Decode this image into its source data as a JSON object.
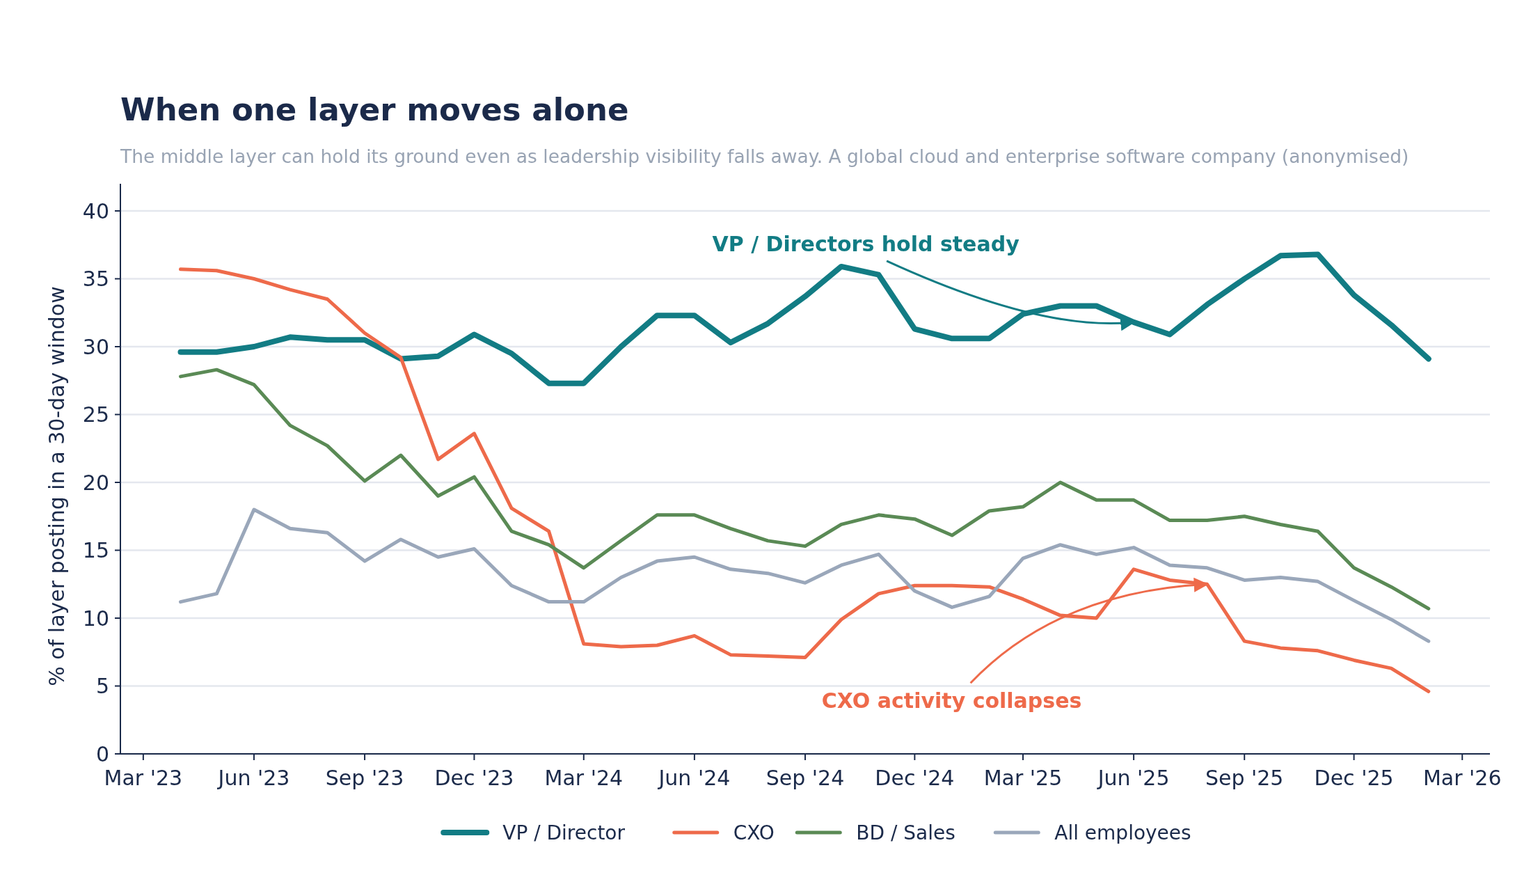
{
  "chart_data": {
    "type": "line",
    "title": "When one layer moves alone",
    "subtitle": "The middle layer can hold its ground even as leadership visibility falls away. A global cloud and enterprise software company (anonymised)",
    "ylabel": "% of layer posting in a 30-day window",
    "x": [
      "2023-04",
      "2023-05",
      "2023-06",
      "2023-07",
      "2023-08",
      "2023-09",
      "2023-10",
      "2023-11",
      "2023-12",
      "2024-01",
      "2024-02",
      "2024-03",
      "2024-04",
      "2024-05",
      "2024-06",
      "2024-07",
      "2024-08",
      "2024-09",
      "2024-10",
      "2024-11",
      "2024-12",
      "2025-01",
      "2025-02",
      "2025-03",
      "2025-04",
      "2025-05",
      "2025-06",
      "2025-07",
      "2025-08",
      "2025-09",
      "2025-10",
      "2025-11",
      "2025-12",
      "2026-01",
      "2026-02"
    ],
    "series": [
      {
        "name": "VP / Director",
        "color": "#127c84",
        "values": [
          29.6,
          29.6,
          30.0,
          30.7,
          30.5,
          30.5,
          29.1,
          29.3,
          30.9,
          29.5,
          27.3,
          27.3,
          30.0,
          32.3,
          32.3,
          30.3,
          31.7,
          33.7,
          35.9,
          35.3,
          31.3,
          30.6,
          30.6,
          32.4,
          33.0,
          33.0,
          31.8,
          30.9,
          33.1,
          35.0,
          36.7,
          36.8,
          33.8,
          31.6,
          29.1
        ]
      },
      {
        "name": "CXO",
        "color": "#ee6a4a",
        "values": [
          35.7,
          35.6,
          35.0,
          34.2,
          33.5,
          31.0,
          29.2,
          21.7,
          23.6,
          18.1,
          16.4,
          8.1,
          7.9,
          8.0,
          8.7,
          7.3,
          7.2,
          7.1,
          9.9,
          11.8,
          12.4,
          12.4,
          12.3,
          11.4,
          10.2,
          10.0,
          13.6,
          12.8,
          12.5,
          8.3,
          7.8,
          7.6,
          6.9,
          6.3,
          4.6
        ]
      },
      {
        "name": "BD / Sales",
        "color": "#5a8a55",
        "values": [
          27.8,
          28.3,
          27.2,
          24.2,
          22.7,
          20.1,
          22.0,
          19.0,
          20.4,
          16.4,
          15.4,
          13.7,
          15.7,
          17.6,
          17.6,
          16.6,
          15.7,
          15.3,
          16.9,
          17.6,
          17.3,
          16.1,
          17.9,
          18.2,
          20.0,
          18.7,
          18.7,
          17.2,
          17.2,
          17.5,
          16.9,
          16.4,
          13.7,
          12.3,
          10.7
        ]
      },
      {
        "name": "All employees",
        "color": "#9aa7ba",
        "values": [
          11.2,
          11.8,
          18.0,
          16.6,
          16.3,
          14.2,
          15.8,
          14.5,
          15.1,
          12.4,
          11.2,
          11.2,
          13.0,
          14.2,
          14.5,
          13.6,
          13.3,
          12.6,
          13.9,
          14.7,
          12.0,
          10.8,
          11.6,
          14.4,
          15.4,
          14.7,
          15.2,
          13.9,
          13.7,
          12.8,
          13.0,
          12.7,
          11.3,
          9.9,
          8.3
        ]
      }
    ],
    "xlim": [
      "2023-02-10",
      "2026-03-24"
    ],
    "xticks": [
      {
        "value": "2023-03",
        "label": "Mar '23"
      },
      {
        "value": "2023-06",
        "label": "Jun '23"
      },
      {
        "value": "2023-09",
        "label": "Sep '23"
      },
      {
        "value": "2023-12",
        "label": "Dec '23"
      },
      {
        "value": "2024-03",
        "label": "Mar '24"
      },
      {
        "value": "2024-06",
        "label": "Jun '24"
      },
      {
        "value": "2024-09",
        "label": "Sep '24"
      },
      {
        "value": "2024-12",
        "label": "Dec '24"
      },
      {
        "value": "2025-03",
        "label": "Mar '25"
      },
      {
        "value": "2025-06",
        "label": "Jun '25"
      },
      {
        "value": "2025-09",
        "label": "Sep '25"
      },
      {
        "value": "2025-12",
        "label": "Dec '25"
      },
      {
        "value": "2026-03",
        "label": "Mar '26"
      }
    ],
    "ylim": [
      0,
      42
    ],
    "yticks": [
      0,
      5,
      10,
      15,
      20,
      25,
      30,
      35,
      40
    ],
    "grid": "y",
    "legend": "bottom",
    "marker": "none",
    "line_style": "solid",
    "annotations": [
      {
        "text": "VP / Directors hold steady",
        "x": "2025-06",
        "y": 31.8
      },
      {
        "text": "CXO activity collapses",
        "x": "2025-08",
        "y": 12.5
      }
    ]
  }
}
